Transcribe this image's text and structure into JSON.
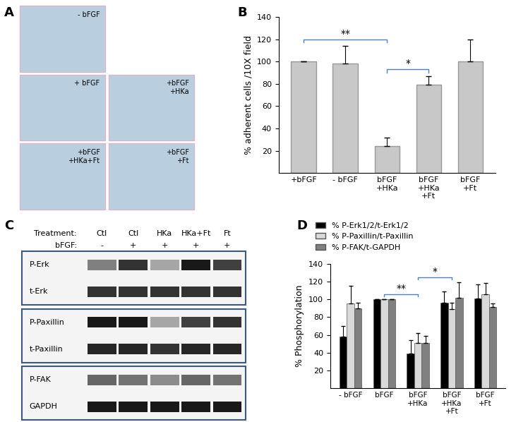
{
  "panel_labels": [
    "A",
    "B",
    "C",
    "D"
  ],
  "images": {
    "tiles": [
      "- bFGF",
      "+ bFGF",
      "+bFGF\n+HKa",
      "+bFGF\n+HKa+Ft",
      "+bFGF\n+Ft"
    ]
  },
  "blot": {
    "header": [
      {
        "label": "Treatment:",
        "lanes": [
          "Ctl",
          "Ctl",
          "HKa",
          "HKa+Ft",
          "Ft"
        ]
      },
      {
        "label": "bFGF:",
        "lanes": [
          "-",
          "+",
          "+",
          "+",
          "+"
        ]
      }
    ],
    "boxes": [
      [
        {
          "label": "P-Erk",
          "intensity": [
            0.5,
            0.8,
            0.35,
            0.9,
            0.75
          ]
        },
        {
          "label": "t-Erk",
          "intensity": [
            0.8,
            0.8,
            0.8,
            0.8,
            0.8
          ]
        }
      ],
      [
        {
          "label": "P-Paxillin",
          "intensity": [
            0.9,
            0.9,
            0.35,
            0.75,
            0.8
          ]
        },
        {
          "label": "t-Paxillin",
          "intensity": [
            0.85,
            0.85,
            0.8,
            0.85,
            0.85
          ]
        }
      ],
      [
        {
          "label": "P-FAK",
          "intensity": [
            0.6,
            0.55,
            0.45,
            0.6,
            0.55
          ]
        },
        {
          "label": "GAPDH",
          "intensity": [
            0.9,
            0.9,
            0.9,
            0.9,
            0.9
          ]
        }
      ]
    ]
  },
  "chart_data": [
    {
      "type": "bar",
      "y_label": "% adherent cells /10X field",
      "categories": [
        "+bFGF",
        "- bFGF",
        "bFGF\n+HKa",
        "bFGF\n+HKa\n+Ft",
        "bFGF\n+Ft"
      ],
      "values": [
        100,
        98,
        24,
        79,
        100
      ],
      "errors": [
        0,
        16,
        8,
        8,
        20
      ],
      "color": "#c8c8c8",
      "ylim": [
        0,
        140
      ],
      "yticks": [
        20,
        40,
        60,
        80,
        100,
        120,
        140
      ],
      "annotations": [
        {
          "text": "**",
          "from": 0,
          "to": 2
        },
        {
          "text": "*",
          "from": 2,
          "to": 3
        }
      ]
    },
    {
      "type": "bar",
      "y_label": "% Phosphorylation",
      "categories": [
        "- bFGF",
        "bFGF",
        "bFGF\n+HKa",
        "bFGF\n+HKa\n+Ft",
        "bFGF\n+Ft"
      ],
      "series": [
        {
          "name": "% P-Erk1/2/t-Erk1/2",
          "color": "#000000",
          "values": [
            58,
            100,
            39,
            96,
            101
          ],
          "errors": [
            12,
            0,
            15,
            13,
            16
          ]
        },
        {
          "name": "% P-Paxillin/t-Paxillin",
          "color": "#d9d9d9",
          "values": [
            95,
            100,
            51,
            89,
            106
          ],
          "errors": [
            20,
            0,
            11,
            7,
            12
          ]
        },
        {
          "name": "% P-FAK/t-GAPDH",
          "color": "#808080",
          "values": [
            90,
            100,
            51,
            102,
            91
          ],
          "errors": [
            6,
            0,
            8,
            17,
            4
          ]
        }
      ],
      "legend": "upper left",
      "ylim": [
        0,
        140
      ],
      "yticks": [
        20,
        40,
        60,
        80,
        100,
        120,
        140
      ],
      "annotations": [
        {
          "text": "**",
          "from": 1,
          "to": 2
        },
        {
          "text": "*",
          "from": 2,
          "to": 3
        }
      ]
    }
  ]
}
